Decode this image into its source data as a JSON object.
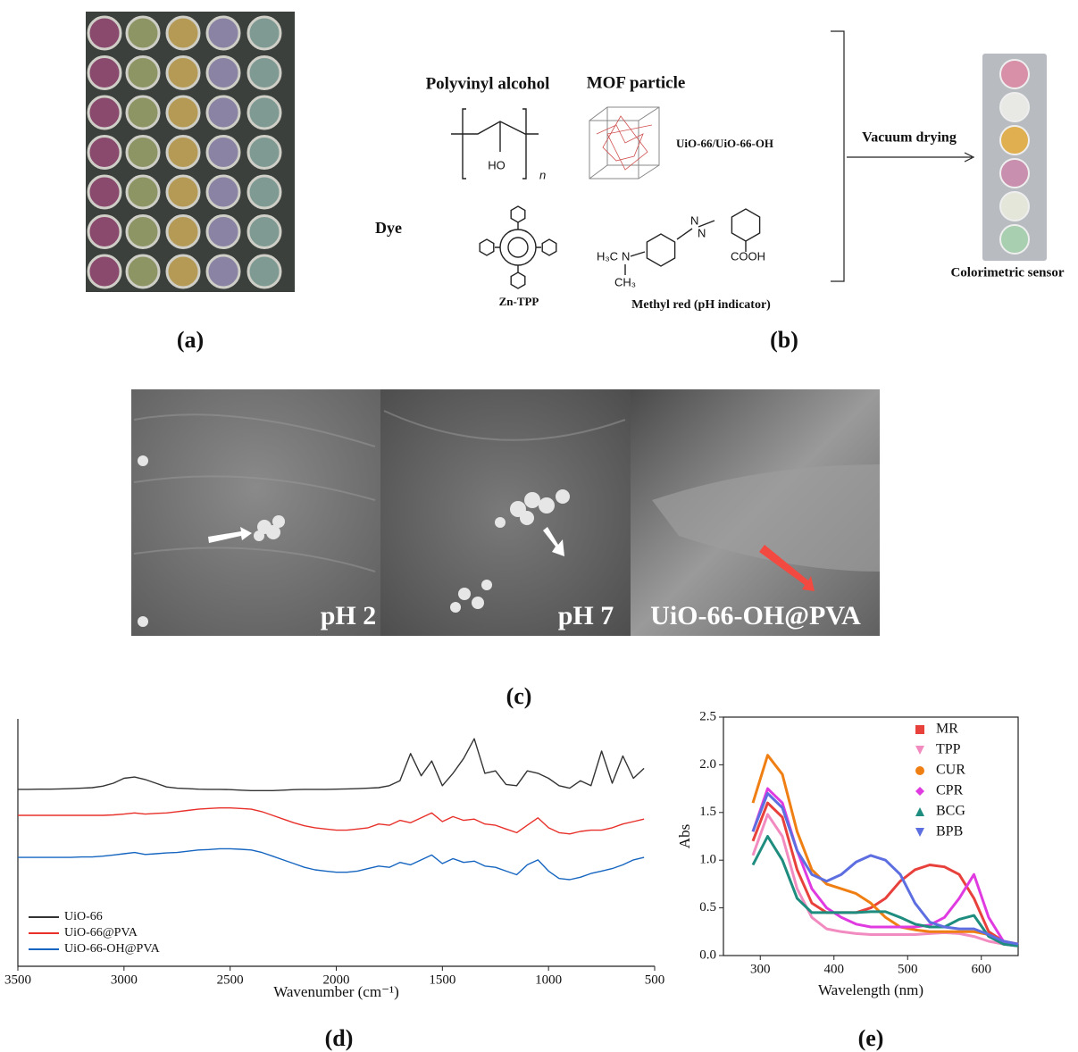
{
  "panel_a": {
    "caption": "(a)"
  },
  "panel_b": {
    "caption": "(b)",
    "polymer_heading": "Polyvinyl alcohol",
    "polymer_hydroxyl": "HO",
    "polymer_repeat": "n",
    "mof_heading": "MOF particle",
    "mof_label": "UiO-66/UiO-66-OH",
    "dye_heading": "Dye",
    "dye_1": "Zn-TPP",
    "dye_2": "Methyl red (pH indicator)",
    "dye_2_groups": [
      "H₃C",
      "N",
      "CH₃",
      "COOH",
      "N",
      "N"
    ],
    "process": "Vacuum drying",
    "product": "Colorimetric sensor"
  },
  "panel_c": {
    "caption": "(c)",
    "images": [
      "pH 2",
      "pH 7",
      "UiO-66-OH@PVA"
    ]
  },
  "chart_data": [
    {
      "type": "line",
      "caption": "(d)",
      "xlabel": "Wavenumber (cm⁻¹)",
      "xlim": [
        3500,
        500
      ],
      "xticks": [
        3500,
        3000,
        2500,
        2000,
        1500,
        1000,
        500
      ],
      "ylim": [
        0,
        10
      ],
      "legend": "lower left",
      "x": [
        3500,
        3450,
        3400,
        3350,
        3300,
        3250,
        3200,
        3150,
        3100,
        3050,
        3000,
        2950,
        2900,
        2850,
        2800,
        2750,
        2700,
        2650,
        2600,
        2550,
        2500,
        2450,
        2400,
        2350,
        2300,
        2250,
        2200,
        2150,
        2100,
        2050,
        2000,
        1950,
        1900,
        1850,
        1800,
        1750,
        1700,
        1650,
        1600,
        1550,
        1500,
        1450,
        1400,
        1350,
        1300,
        1250,
        1200,
        1150,
        1100,
        1050,
        1000,
        950,
        900,
        850,
        800,
        750,
        700,
        650,
        600,
        550
      ],
      "series": [
        {
          "name": "UiO-66",
          "color": "#333333",
          "values": [
            7.15,
            7.15,
            7.16,
            7.16,
            7.17,
            7.18,
            7.2,
            7.22,
            7.28,
            7.4,
            7.6,
            7.65,
            7.55,
            7.4,
            7.25,
            7.2,
            7.18,
            7.16,
            7.15,
            7.15,
            7.14,
            7.12,
            7.1,
            7.1,
            7.1,
            7.12,
            7.14,
            7.15,
            7.15,
            7.15,
            7.16,
            7.17,
            7.18,
            7.2,
            7.22,
            7.3,
            7.5,
            8.6,
            7.7,
            8.3,
            7.3,
            7.8,
            8.4,
            9.2,
            7.8,
            7.9,
            7.35,
            7.3,
            7.9,
            7.8,
            7.6,
            7.3,
            7.2,
            7.5,
            7.3,
            8.7,
            7.4,
            8.5,
            7.6,
            8.0
          ]
        },
        {
          "name": "UiO-66@PVA",
          "color": "#e8302a",
          "values": [
            6.1,
            6.1,
            6.1,
            6.1,
            6.1,
            6.1,
            6.1,
            6.1,
            6.1,
            6.12,
            6.15,
            6.2,
            6.15,
            6.18,
            6.2,
            6.25,
            6.3,
            6.35,
            6.38,
            6.4,
            6.4,
            6.38,
            6.35,
            6.25,
            6.1,
            5.95,
            5.8,
            5.68,
            5.6,
            5.55,
            5.5,
            5.5,
            5.55,
            5.6,
            5.75,
            5.7,
            5.9,
            5.8,
            6.0,
            6.2,
            5.85,
            6.05,
            5.9,
            5.95,
            5.75,
            5.7,
            5.55,
            5.4,
            5.7,
            6.0,
            5.6,
            5.4,
            5.35,
            5.45,
            5.5,
            5.5,
            5.6,
            5.75,
            5.85,
            5.95
          ]
        },
        {
          "name": "UiO-66-OH@PVA",
          "color": "#1565c0",
          "values": [
            4.4,
            4.4,
            4.4,
            4.4,
            4.4,
            4.4,
            4.42,
            4.42,
            4.45,
            4.5,
            4.55,
            4.6,
            4.52,
            4.55,
            4.58,
            4.6,
            4.65,
            4.7,
            4.72,
            4.75,
            4.75,
            4.73,
            4.7,
            4.6,
            4.45,
            4.3,
            4.15,
            4.0,
            3.9,
            3.85,
            3.8,
            3.8,
            3.85,
            3.95,
            4.05,
            4.0,
            4.2,
            4.1,
            4.3,
            4.5,
            4.15,
            4.35,
            4.2,
            4.25,
            4.05,
            4.0,
            3.85,
            3.7,
            4.1,
            4.3,
            3.85,
            3.55,
            3.5,
            3.6,
            3.75,
            3.85,
            3.95,
            4.1,
            4.3,
            4.4
          ]
        }
      ]
    },
    {
      "type": "line",
      "caption": "(e)",
      "xlabel": "Wavelength (nm)",
      "ylabel": "Abs",
      "xlim": [
        250,
        650
      ],
      "xticks": [
        300,
        400,
        500,
        600
      ],
      "ylim": [
        0,
        2.5
      ],
      "yticks": [
        {
          "value": 0,
          "label": "0.0"
        },
        0.5,
        {
          "value": 1,
          "label": "1.0"
        },
        1.5,
        {
          "value": 2,
          "label": "2.0"
        },
        2.5
      ],
      "legend": "upper right",
      "x": [
        290,
        310,
        330,
        350,
        370,
        390,
        410,
        430,
        450,
        470,
        490,
        510,
        530,
        550,
        570,
        590,
        610,
        630,
        650
      ],
      "series": [
        {
          "name": "MR",
          "color": "#e8413c",
          "marker": "square",
          "values": [
            1.2,
            1.6,
            1.45,
            0.9,
            0.55,
            0.45,
            0.45,
            0.45,
            0.5,
            0.6,
            0.78,
            0.9,
            0.95,
            0.93,
            0.85,
            0.6,
            0.25,
            0.15,
            0.12
          ]
        },
        {
          "name": "TPP",
          "color": "#f28bc0",
          "marker": "triangle-down",
          "values": [
            1.05,
            1.48,
            1.25,
            0.7,
            0.4,
            0.28,
            0.25,
            0.23,
            0.22,
            0.22,
            0.22,
            0.22,
            0.23,
            0.24,
            0.23,
            0.2,
            0.15,
            0.12,
            0.1
          ]
        },
        {
          "name": "CUR",
          "color": "#f07f13",
          "marker": "circle",
          "values": [
            1.6,
            2.1,
            1.9,
            1.3,
            0.9,
            0.75,
            0.7,
            0.65,
            0.55,
            0.4,
            0.3,
            0.27,
            0.25,
            0.25,
            0.25,
            0.25,
            0.22,
            0.15,
            0.12
          ]
        },
        {
          "name": "CPR",
          "color": "#e03be0",
          "marker": "diamond",
          "values": [
            1.3,
            1.75,
            1.6,
            1.1,
            0.7,
            0.5,
            0.4,
            0.33,
            0.3,
            0.3,
            0.3,
            0.3,
            0.32,
            0.4,
            0.6,
            0.85,
            0.4,
            0.15,
            0.12
          ]
        },
        {
          "name": "BCG",
          "color": "#1e8c7e",
          "marker": "triangle-up",
          "values": [
            0.95,
            1.25,
            1.0,
            0.6,
            0.45,
            0.45,
            0.45,
            0.45,
            0.46,
            0.46,
            0.4,
            0.33,
            0.3,
            0.3,
            0.38,
            0.42,
            0.2,
            0.12,
            0.1
          ]
        },
        {
          "name": "BPB",
          "color": "#5d6ee0",
          "marker": "triangle-down",
          "values": [
            1.3,
            1.7,
            1.55,
            1.1,
            0.85,
            0.78,
            0.85,
            0.98,
            1.05,
            1.0,
            0.85,
            0.55,
            0.35,
            0.3,
            0.28,
            0.28,
            0.22,
            0.15,
            0.12
          ]
        }
      ]
    }
  ]
}
